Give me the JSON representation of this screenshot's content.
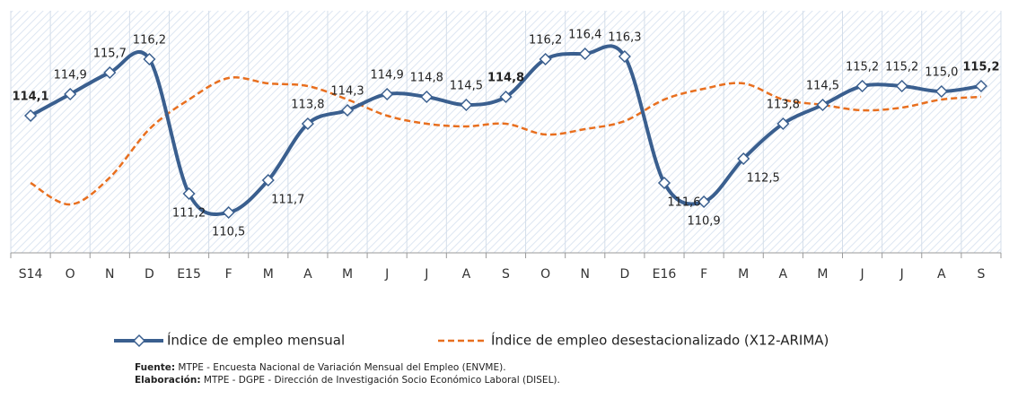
{
  "chart_data": {
    "type": "line",
    "categories": [
      "S14",
      "O",
      "N",
      "D",
      "E15",
      "F",
      "M",
      "A",
      "M",
      "J",
      "J",
      "A",
      "S",
      "O",
      "N",
      "D",
      "E16",
      "F",
      "M",
      "A",
      "M",
      "J",
      "J",
      "A",
      "S"
    ],
    "series": [
      {
        "name": "Índice de empleo mensual",
        "color": "#3a5f8f",
        "style": "solid-diamond",
        "values": [
          114.1,
          114.9,
          115.7,
          116.2,
          111.2,
          110.5,
          111.7,
          113.8,
          114.3,
          114.9,
          114.8,
          114.5,
          114.8,
          116.2,
          116.4,
          116.3,
          111.6,
          110.9,
          112.5,
          113.8,
          114.5,
          115.2,
          115.2,
          115.0,
          115.2
        ],
        "value_labels": [
          "114,1",
          "114,9",
          "115,7",
          "116,2",
          "111,2",
          "110,5",
          "111,7",
          "113,8",
          "114,3",
          "114,9",
          "114,8",
          "114,5",
          "114,8",
          "116,2",
          "116,4",
          "116,3",
          "111,6",
          "110,9",
          "112,5",
          "113,8",
          "114,5",
          "115,2",
          "115,2",
          "115,0",
          "115,2"
        ]
      },
      {
        "name": "Índice de empleo desestacionalizado (X12-ARIMA)",
        "color": "#e86f1f",
        "style": "dashed",
        "values": [
          111.6,
          110.8,
          111.8,
          113.6,
          114.7,
          115.5,
          115.3,
          115.2,
          114.7,
          114.1,
          113.8,
          113.7,
          113.8,
          113.4,
          113.6,
          113.9,
          114.7,
          115.1,
          115.3,
          114.7,
          114.5,
          114.3,
          114.4,
          114.7,
          114.8
        ]
      }
    ],
    "ylim": [
      109,
      118
    ],
    "grid": true
  },
  "notes": [
    {
      "label": "Fuente:",
      "text": " MTPE - Encuesta Nacional de Variación Mensual del Empleo (ENVME)."
    },
    {
      "label": "Elaboración:",
      "text": " MTPE - DGPE - Dirección de Investigación Socio Económico Laboral (DISEL)."
    }
  ]
}
